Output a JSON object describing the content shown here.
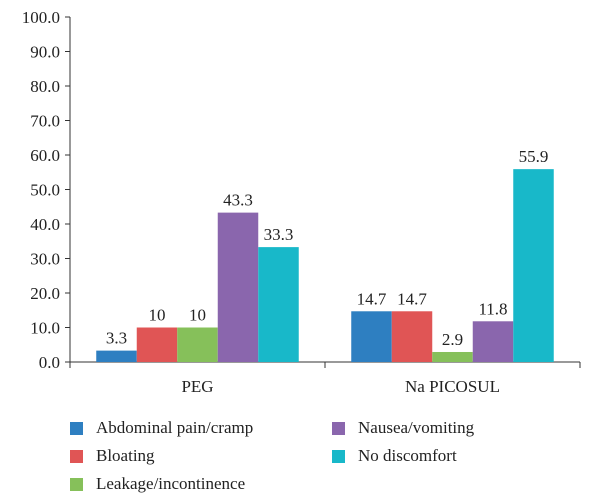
{
  "chart_data": {
    "type": "bar",
    "categories": [
      "PEG",
      "Na PICOSUL"
    ],
    "series": [
      {
        "name": "Abdominal pain/cramp",
        "color": "#2e7fc1",
        "values": [
          3.3,
          14.7
        ],
        "labels": [
          "3.3",
          "14.7"
        ]
      },
      {
        "name": "Bloating",
        "color": "#e05555",
        "values": [
          10,
          14.7
        ],
        "labels": [
          "10",
          "14.7"
        ]
      },
      {
        "name": "Leakage/incontinence",
        "color": "#86c05a",
        "values": [
          10,
          2.9
        ],
        "labels": [
          "10",
          "2.9"
        ]
      },
      {
        "name": "Nausea/vomiting",
        "color": "#8a66ad",
        "values": [
          43.3,
          11.8
        ],
        "labels": [
          "43.3",
          "11.8"
        ]
      },
      {
        "name": "No discomfort",
        "color": "#18b8c9",
        "values": [
          33.3,
          55.9
        ],
        "labels": [
          "33.3",
          "55.9"
        ]
      }
    ],
    "ylim": [
      0,
      100
    ],
    "yticks": [
      "0.0",
      "10.0",
      "20.0",
      "30.0",
      "40.0",
      "50.0",
      "60.0",
      "70.0",
      "80.0",
      "90.0",
      "100.0"
    ],
    "grid": false,
    "legend_position": "bottom"
  }
}
